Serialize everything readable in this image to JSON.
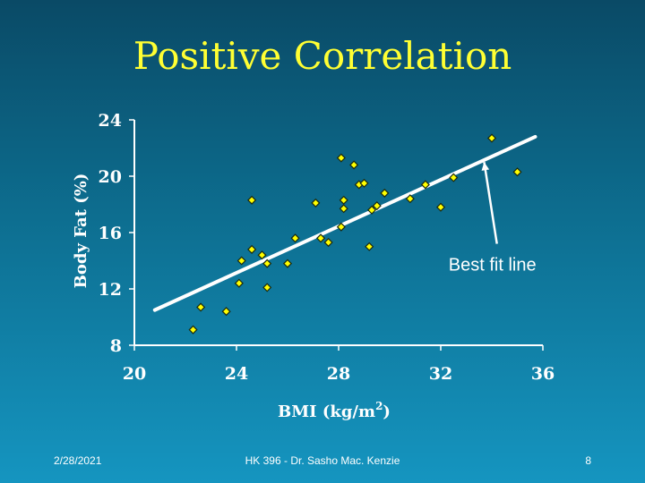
{
  "slide": {
    "title": "Positive Correlation",
    "footer_date": "2/28/2021",
    "footer_center": "HK 396 - Dr. Sasho Mac. Kenzie",
    "page_number": "8"
  },
  "colors": {
    "title": "#ffff33",
    "point": "#ffff00",
    "line": "#ffffff"
  },
  "chart_data": {
    "type": "scatter",
    "title": "Positive Correlation",
    "xlabel": "BMI (kg/m",
    "xlabel_sup": "2",
    "xlabel_suffix": ")",
    "ylabel": "Body Fat (%)",
    "xlim": [
      20,
      36
    ],
    "ylim": [
      8,
      24
    ],
    "xticks": [
      "20",
      "24",
      "28",
      "32",
      "36"
    ],
    "yticks": [
      "24",
      "20",
      "16",
      "12",
      "8"
    ],
    "grid": false,
    "points": [
      {
        "x": 22.3,
        "y": 9.1
      },
      {
        "x": 22.6,
        "y": 10.7
      },
      {
        "x": 23.6,
        "y": 10.4
      },
      {
        "x": 24.1,
        "y": 12.4
      },
      {
        "x": 24.2,
        "y": 14.0
      },
      {
        "x": 24.6,
        "y": 14.8
      },
      {
        "x": 25.0,
        "y": 14.4
      },
      {
        "x": 25.2,
        "y": 13.8
      },
      {
        "x": 25.2,
        "y": 12.1
      },
      {
        "x": 24.6,
        "y": 18.3
      },
      {
        "x": 26.0,
        "y": 13.8
      },
      {
        "x": 26.3,
        "y": 15.6
      },
      {
        "x": 27.1,
        "y": 18.1
      },
      {
        "x": 27.3,
        "y": 15.6
      },
      {
        "x": 27.6,
        "y": 15.3
      },
      {
        "x": 28.1,
        "y": 16.4
      },
      {
        "x": 28.2,
        "y": 17.7
      },
      {
        "x": 28.2,
        "y": 18.3
      },
      {
        "x": 28.1,
        "y": 21.3
      },
      {
        "x": 28.6,
        "y": 20.8
      },
      {
        "x": 28.8,
        "y": 19.4
      },
      {
        "x": 29.0,
        "y": 19.5
      },
      {
        "x": 29.2,
        "y": 15.0
      },
      {
        "x": 29.3,
        "y": 17.6
      },
      {
        "x": 29.5,
        "y": 17.9
      },
      {
        "x": 29.8,
        "y": 18.8
      },
      {
        "x": 30.8,
        "y": 18.4
      },
      {
        "x": 31.4,
        "y": 19.4
      },
      {
        "x": 32.0,
        "y": 17.8
      },
      {
        "x": 32.5,
        "y": 19.9
      },
      {
        "x": 34.0,
        "y": 22.7
      },
      {
        "x": 35.0,
        "y": 20.3
      }
    ],
    "fit_line": {
      "x": [
        20.8,
        35.7
      ],
      "y": [
        10.5,
        22.8
      ]
    },
    "annotation": {
      "text": "Best fit line",
      "arrow_from": {
        "x": 34.2,
        "y": 15.2
      },
      "arrow_to": {
        "x": 33.7,
        "y": 21.0
      }
    }
  }
}
